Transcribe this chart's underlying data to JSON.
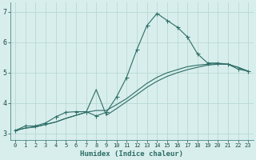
{
  "xlabel": "Humidex (Indice chaleur)",
  "background_color": "#d8eeed",
  "grid_color": "#b8d8d5",
  "line_color": "#2d6e65",
  "xlim": [
    -0.5,
    23.5
  ],
  "ylim": [
    2.8,
    7.3
  ],
  "xticks": [
    0,
    1,
    2,
    3,
    4,
    5,
    6,
    7,
    8,
    9,
    10,
    11,
    12,
    13,
    14,
    15,
    16,
    17,
    18,
    19,
    20,
    21,
    22,
    23
  ],
  "yticks": [
    3,
    4,
    5,
    6,
    7
  ],
  "series1_x": [
    0,
    1,
    2,
    3,
    4,
    5,
    6,
    7,
    8,
    9,
    10,
    11,
    12,
    13,
    14,
    15,
    16,
    17,
    18,
    19,
    20,
    21,
    22,
    23
  ],
  "series1_y": [
    3.1,
    3.25,
    3.25,
    3.35,
    3.55,
    3.7,
    3.72,
    3.72,
    3.58,
    3.7,
    4.2,
    4.85,
    5.75,
    6.55,
    6.95,
    6.72,
    6.5,
    6.18,
    5.62,
    5.32,
    5.32,
    5.28,
    5.12,
    5.05
  ],
  "series2_x": [
    0,
    1,
    2,
    3,
    4,
    5,
    6,
    7,
    8,
    9,
    10,
    11,
    12,
    13,
    14,
    15,
    16,
    17,
    18,
    19,
    20,
    21,
    22,
    23
  ],
  "series2_y": [
    3.1,
    3.18,
    3.22,
    3.3,
    3.38,
    3.5,
    3.6,
    3.7,
    4.45,
    3.6,
    3.82,
    4.05,
    4.28,
    4.52,
    4.72,
    4.88,
    5.0,
    5.1,
    5.18,
    5.25,
    5.28,
    5.28,
    5.18,
    5.05
  ],
  "series3_x": [
    0,
    1,
    2,
    3,
    4,
    5,
    6,
    7,
    8,
    9,
    10,
    11,
    12,
    13,
    14,
    15,
    16,
    17,
    18,
    19,
    20,
    21,
    22,
    23
  ],
  "series3_y": [
    3.1,
    3.18,
    3.22,
    3.3,
    3.38,
    3.5,
    3.6,
    3.7,
    3.76,
    3.76,
    3.95,
    4.15,
    4.4,
    4.65,
    4.85,
    5.0,
    5.1,
    5.2,
    5.25,
    5.28,
    5.3,
    5.28,
    5.18,
    5.05
  ]
}
